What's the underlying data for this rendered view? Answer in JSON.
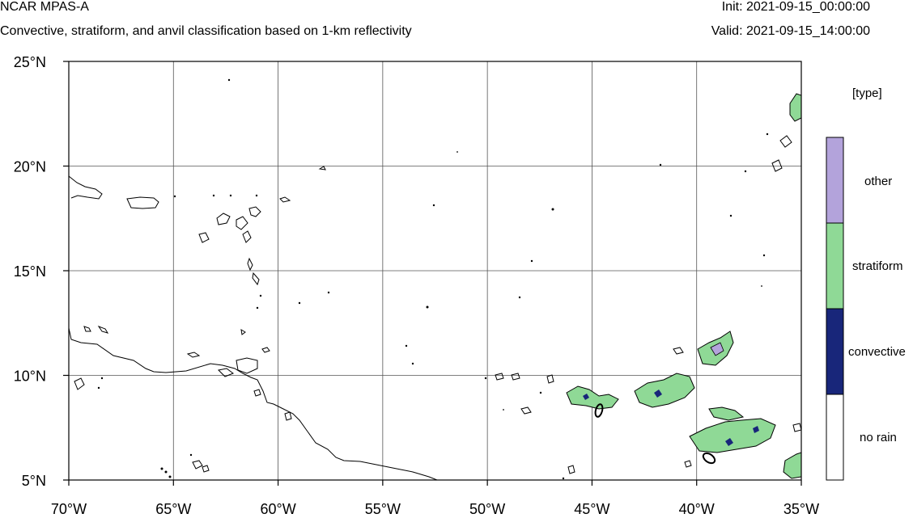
{
  "header": {
    "title": "NCAR MPAS-A",
    "subtitle": "Convective, stratiform, and anvil classification based on 1-km reflectivity",
    "init": "Init: 2021-09-15_00:00:00",
    "valid": "Valid: 2021-09-15_14:00:00"
  },
  "map": {
    "lon_range": [
      -70,
      -35
    ],
    "lat_range": [
      5,
      25
    ],
    "lon_ticks": [
      "70°W",
      "65°W",
      "60°W",
      "55°W",
      "50°W",
      "45°W",
      "40°W",
      "35°W"
    ],
    "lat_ticks": [
      "25°N",
      "20°N",
      "15°N",
      "10°N",
      "5°N"
    ],
    "grid": true
  },
  "legend": {
    "title": "[type]",
    "items": [
      {
        "label": "other",
        "color": "#b3a3db"
      },
      {
        "label": "stratiform",
        "color": "#8fd996"
      },
      {
        "label": "convective",
        "color": "#18267a"
      },
      {
        "label": "no rain",
        "color": "#ffffff"
      }
    ]
  }
}
